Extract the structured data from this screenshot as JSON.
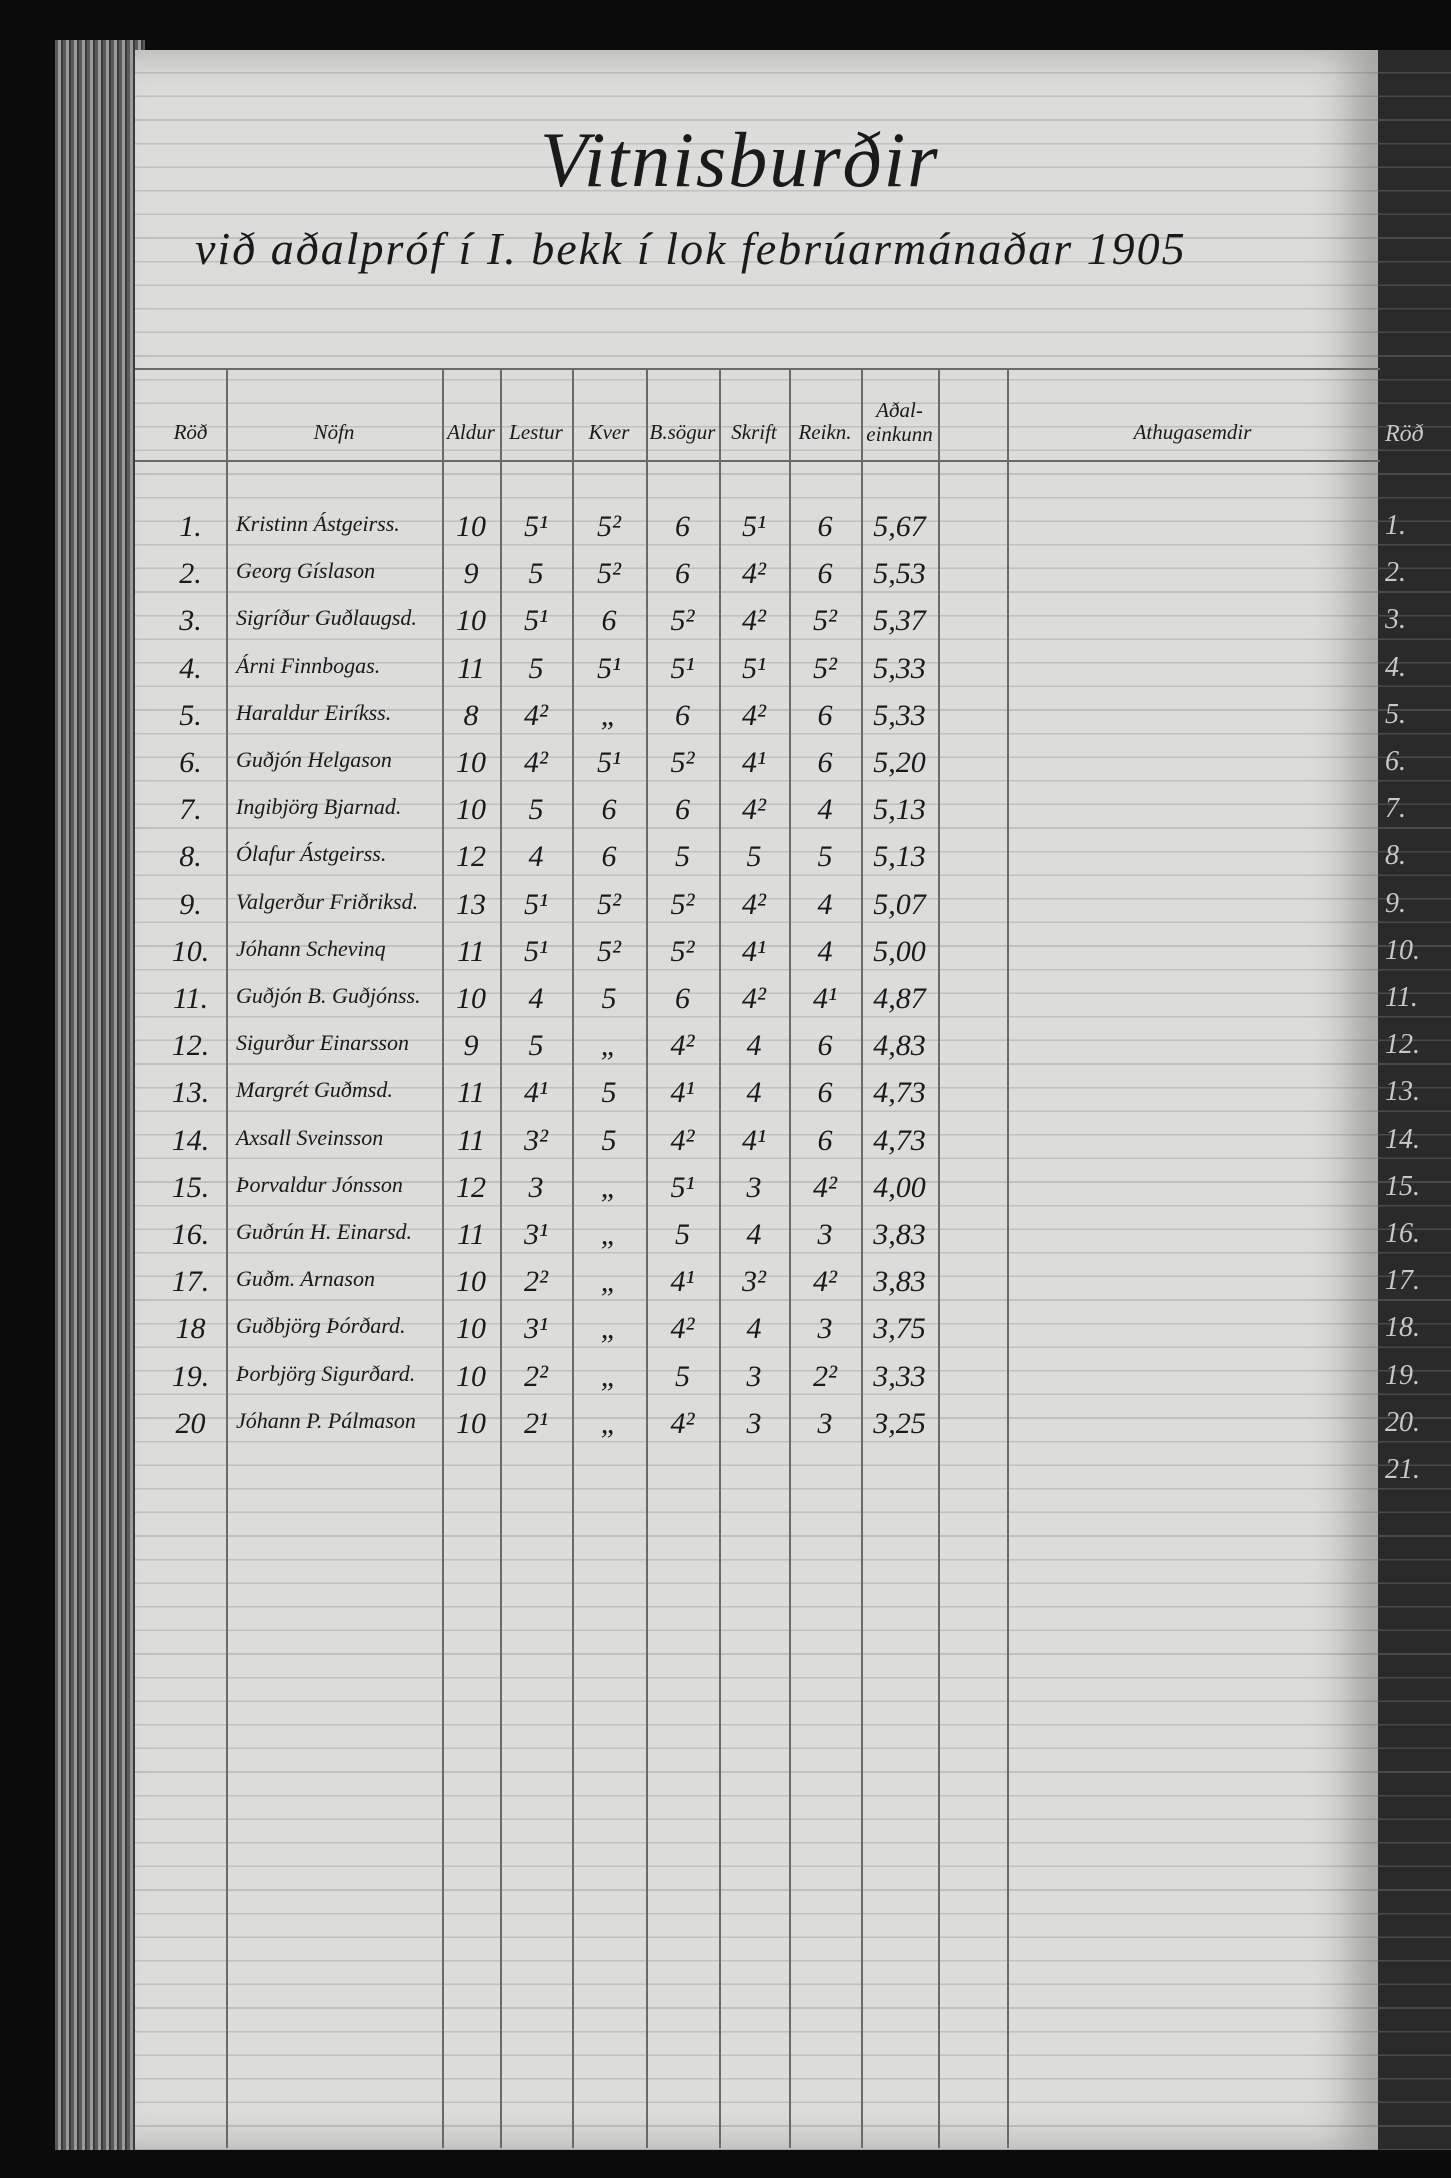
{
  "title": "Vitnisburðir",
  "subtitle": "við aðalpróf í I. bekk í lok febrúarmánaðar 1905",
  "table": {
    "headers": [
      "Röð",
      "Nöfn",
      "Aldur",
      "Lestur",
      "Kver",
      "B.sögur",
      "Skrift",
      "Reikn.",
      "Aðal-einkunn",
      "Athugasemdir"
    ],
    "rows": [
      [
        "1.",
        "Kristinn Ástgeirss.",
        "10",
        "5¹",
        "5²",
        "6",
        "5¹",
        "6",
        "5,67"
      ],
      [
        "2.",
        "Georg Gíslason",
        "9",
        "5",
        "5²",
        "6",
        "4²",
        "6",
        "5,53"
      ],
      [
        "3.",
        "Sigríður Guðlaugsd.",
        "10",
        "5¹",
        "6",
        "5²",
        "4²",
        "5²",
        "5,37"
      ],
      [
        "4.",
        "Árni Finnbogas.",
        "11",
        "5",
        "5¹",
        "5¹",
        "5¹",
        "5²",
        "5,33"
      ],
      [
        "5.",
        "Haraldur Eiríkss.",
        "8",
        "4²",
        "„",
        "6",
        "4²",
        "6",
        "5,33"
      ],
      [
        "6.",
        "Guðjón Helgason",
        "10",
        "4²",
        "5¹",
        "5²",
        "4¹",
        "6",
        "5,20"
      ],
      [
        "7.",
        "Ingibjörg Bjarnad.",
        "10",
        "5",
        "6",
        "6",
        "4²",
        "4",
        "5,13"
      ],
      [
        "8.",
        "Ólafur Ástgeirss.",
        "12",
        "4",
        "6",
        "5",
        "5",
        "5",
        "5,13"
      ],
      [
        "9.",
        "Valgerður Friðriksd.",
        "13",
        "5¹",
        "5²",
        "5²",
        "4²",
        "4",
        "5,07"
      ],
      [
        "10.",
        "Jóhann Schevinq",
        "11",
        "5¹",
        "5²",
        "5²",
        "4¹",
        "4",
        "5,00"
      ],
      [
        "11.",
        "Guðjón B. Guðjónss.",
        "10",
        "4",
        "5",
        "6",
        "4²",
        "4¹",
        "4,87"
      ],
      [
        "12.",
        "Sigurður Einarsson",
        "9",
        "5",
        "„",
        "4²",
        "4",
        "6",
        "4,83"
      ],
      [
        "13.",
        "Margrét Guðmsd.",
        "11",
        "4¹",
        "5",
        "4¹",
        "4",
        "6",
        "4,73"
      ],
      [
        "14.",
        "Axsall Sveinsson",
        "11",
        "3²",
        "5",
        "4²",
        "4¹",
        "6",
        "4,73"
      ],
      [
        "15.",
        "Þorvaldur Jónsson",
        "12",
        "3",
        "„",
        "5¹",
        "3",
        "4²",
        "4,00"
      ],
      [
        "16.",
        "Guðrún H. Einarsd.",
        "11",
        "3¹",
        "„",
        "5",
        "4",
        "3",
        "3,83"
      ],
      [
        "17.",
        "Guðm. Arnason",
        "10",
        "2²",
        "„",
        "4¹",
        "3²",
        "4²",
        "3,83"
      ],
      [
        "18",
        "Guðbjörg Þórðard.",
        "10",
        "3¹",
        "„",
        "4²",
        "4",
        "3",
        "3,75"
      ],
      [
        "19.",
        "Þorbjörg Sigurðard.",
        "10",
        "2²",
        "„",
        "5",
        "3",
        "2²",
        "3,33"
      ],
      [
        "20",
        "Jóhann P. Pálmason",
        "10",
        "2¹",
        "„",
        "4²",
        "3",
        "3",
        "3,25"
      ]
    ]
  },
  "next_page": {
    "header": "Röð",
    "numbers": [
      "1.",
      "2.",
      "3.",
      "4.",
      "5.",
      "6.",
      "7.",
      "8.",
      "9.",
      "10.",
      "11.",
      "12.",
      "13.",
      "14.",
      "15.",
      "16.",
      "17.",
      "18.",
      "19.",
      "20.",
      "21."
    ]
  }
}
